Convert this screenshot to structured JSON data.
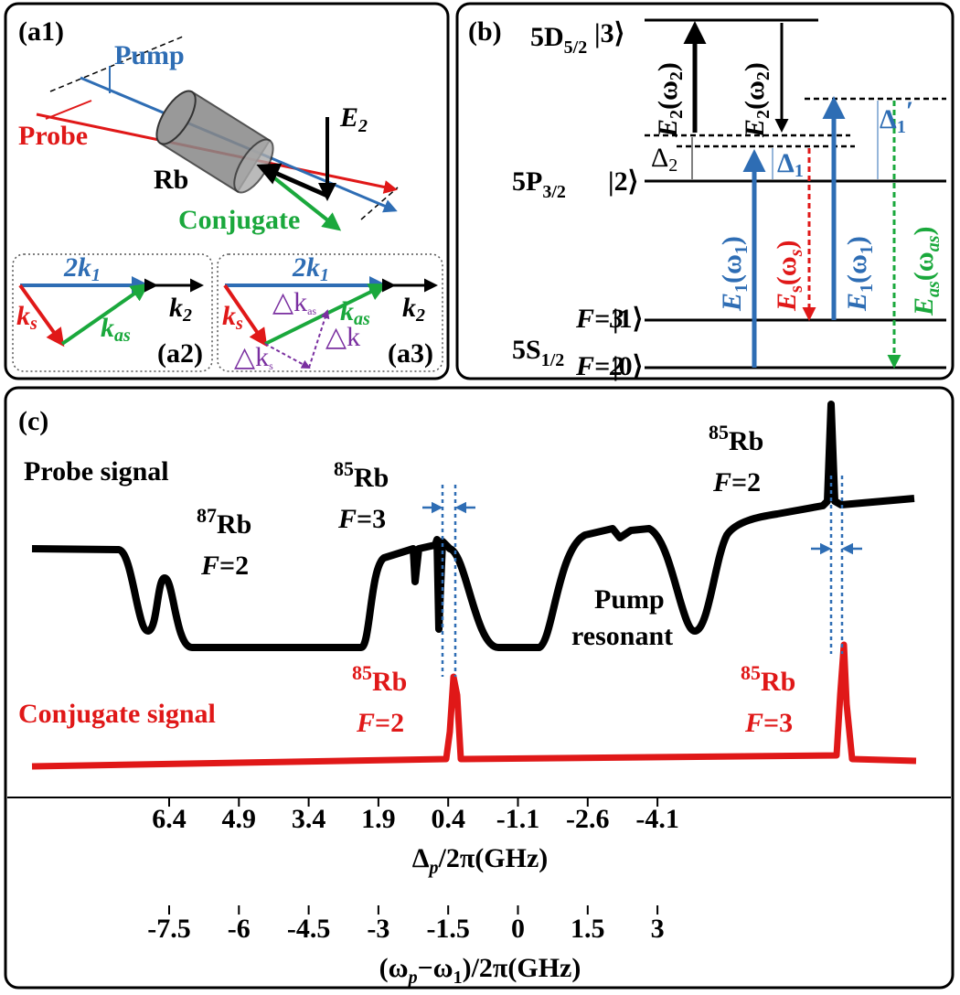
{
  "panel_a1": {
    "label": "(a1)",
    "pump": "Pump",
    "probe": "Probe",
    "rb": "Rb",
    "conjugate": "Conjugate",
    "e2": [
      "E",
      "2"
    ]
  },
  "panel_a2": {
    "label": "(a2)",
    "k1": [
      "2k",
      "1"
    ],
    "k2": [
      "k",
      "2"
    ],
    "ks": [
      "k",
      "s"
    ],
    "kas": [
      "k",
      "as"
    ]
  },
  "panel_a3": {
    "label": "(a3)",
    "k1": [
      "2k",
      "1"
    ],
    "k2": [
      "k",
      "2"
    ],
    "ks": [
      "k",
      "s"
    ],
    "kas": [
      "k",
      "as"
    ],
    "dkas": [
      "△k",
      "as"
    ],
    "dks": [
      "△k",
      "s"
    ],
    "dk": "△k"
  },
  "panel_b": {
    "label": "(b)",
    "level_5d": [
      "5D",
      "5/2"
    ],
    "level_5p": [
      "5P",
      "3/2"
    ],
    "level_5s": [
      "5S",
      "1/2"
    ],
    "ket3": "|3⟩",
    "ket2": "|2⟩",
    "ket1": "|1⟩",
    "ket0": "|0⟩",
    "f3": "F=3",
    "f2": "F=2",
    "delta2": [
      "Δ",
      "2"
    ],
    "delta1": [
      "Δ",
      "1"
    ],
    "delta1p": [
      "Δ",
      "1",
      "′"
    ],
    "e2_field": [
      "E",
      "2",
      "(ω",
      "2",
      ")"
    ],
    "e1_field": [
      "E",
      "1",
      "(ω",
      "1",
      ")"
    ],
    "es_field": [
      "E",
      "s",
      "(ω",
      "s",
      ")"
    ],
    "eas_field": [
      "E",
      "as",
      "(ω",
      "as",
      ")"
    ]
  },
  "panel_c": {
    "label": "(c)",
    "probe_signal": "Probe signal",
    "conjugate_signal": "Conjugate signal",
    "peaks": [
      {
        "mass": "87",
        "element": "Rb",
        "f": "F",
        "value": "=2"
      },
      {
        "mass": "85",
        "element": "Rb",
        "f": "F",
        "value": "=3"
      },
      {
        "mass": "85",
        "element": "Rb",
        "f": "F",
        "value": "=2"
      },
      {
        "mass": "85",
        "element": "Rb",
        "f": "F",
        "value": "=2"
      },
      {
        "mass": "85",
        "element": "Rb",
        "f": "F",
        "value": "=3"
      }
    ],
    "pump_resonant": [
      "Pump",
      "resonant"
    ],
    "axis1": {
      "ticks": [
        "6.4",
        "4.9",
        "3.4",
        "1.9",
        "0.4",
        "-1.1",
        "-2.6",
        "-4.1"
      ],
      "label": [
        "Δ",
        "p",
        "/2π(GHz)"
      ]
    },
    "axis2": {
      "ticks": [
        "-7.5",
        "-6",
        "-4.5",
        "-3",
        "-1.5",
        "0",
        "1.5",
        "3"
      ],
      "label": [
        "(ω",
        "p",
        "−ω",
        "1",
        ")/2π(GHz)"
      ]
    }
  }
}
